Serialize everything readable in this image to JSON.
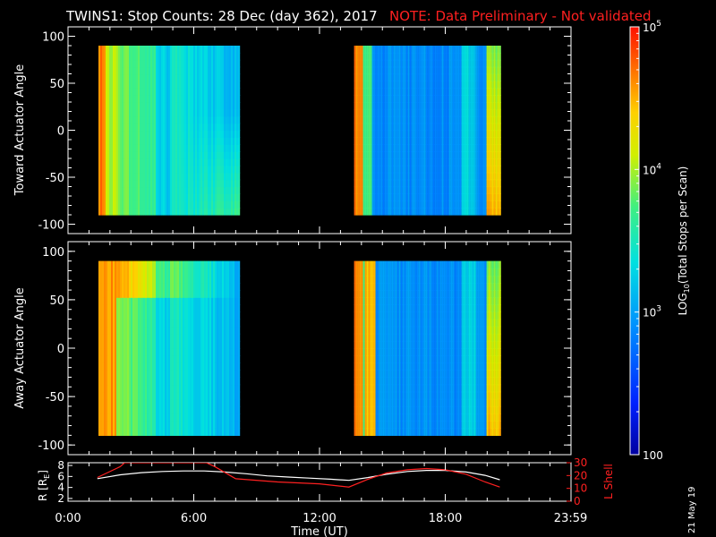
{
  "title": {
    "main": "TWINS1: Stop Counts: 28 Dec (day 362), 2017",
    "note": "NOTE: Data Preliminary - Not validated"
  },
  "stamp": "21 May 19",
  "chart_data": [
    {
      "type": "heatmap",
      "ylabel": "Toward Actuator Angle",
      "ylim": [
        -110,
        110
      ],
      "yticks": [
        "100",
        "50",
        "0",
        "-50",
        "-100"
      ],
      "ytick_values": [
        100,
        50,
        0,
        -50,
        -100
      ],
      "data_range_y": [
        -90,
        90
      ],
      "time_blocks_hours": [
        [
          1.45,
          8.15
        ],
        [
          13.65,
          20.65
        ]
      ],
      "colormap": "rainbow",
      "description_level": "log10 counts per scan, 100 to 1e5"
    },
    {
      "type": "heatmap",
      "ylabel": "Away Actuator Angle",
      "ylim": [
        -110,
        110
      ],
      "yticks": [
        "100",
        "50",
        "0",
        "-50",
        "-100"
      ],
      "ytick_values": [
        100,
        50,
        0,
        -50,
        -100
      ],
      "data_range_y": [
        -90,
        90
      ],
      "time_blocks_hours": [
        [
          1.45,
          8.15
        ],
        [
          13.65,
          20.65
        ]
      ],
      "colormap": "rainbow"
    },
    {
      "type": "line",
      "ylabel_left": "R [R",
      "ylabel_left_sub": "E",
      "ylabel_left_end": "]",
      "ylabel_right": "L Shell",
      "ylim_left": [
        1.5,
        8.5
      ],
      "yticks_left": [
        "8",
        "6",
        "4",
        "2"
      ],
      "ytick_values_left": [
        8,
        6,
        4,
        2
      ],
      "ylim_right": [
        0,
        30
      ],
      "yticks_right": [
        "30",
        "20",
        "10",
        "0"
      ],
      "ytick_values_right": [
        30,
        20,
        10,
        0
      ],
      "series": [
        {
          "name": "R",
          "color": "#ffffff",
          "x": [
            1.4,
            2.5,
            3.5,
            4.5,
            5.5,
            6.5,
            7.5,
            8.5,
            9.5,
            10.5,
            11.5,
            12.5,
            13.4,
            14.3,
            15.2,
            16.2,
            17.1,
            18.0,
            19.0,
            19.9,
            20.6
          ],
          "y": [
            5.6,
            6.3,
            6.7,
            6.9,
            7.0,
            7.0,
            6.8,
            6.5,
            6.1,
            5.9,
            5.7,
            5.5,
            5.3,
            5.8,
            6.4,
            6.9,
            7.1,
            7.1,
            6.8,
            6.2,
            5.4
          ]
        },
        {
          "name": "L Shell",
          "color": "#ff2020",
          "x": [
            1.4,
            2.5,
            2.7,
            6.6,
            7.0,
            8.0,
            10.0,
            12.0,
            13.4,
            14.3,
            15.2,
            16.2,
            17.1,
            18.0,
            19.0,
            19.9,
            20.6
          ],
          "y": [
            18.5,
            27.0,
            30.0,
            30.0,
            27.0,
            17.5,
            15.0,
            13.5,
            11.0,
            17.0,
            22.0,
            24.5,
            25.5,
            24.5,
            21.0,
            15.0,
            11.0
          ]
        }
      ]
    }
  ],
  "x_axis": {
    "label": "Time (UT)",
    "range_hours": [
      0,
      24
    ],
    "ticks": [
      "0:00",
      "6:00",
      "12:00",
      "18:00",
      "23:59"
    ],
    "tick_values": [
      0,
      6,
      12,
      18,
      23.98
    ]
  },
  "colorbar": {
    "label_main": "LOG",
    "label_sub": "10",
    "label_rest": "(Total Stops per Scan)",
    "ticks": [
      "10",
      "10",
      "10",
      "100"
    ],
    "tick_exps": [
      "5",
      "4",
      "3",
      ""
    ],
    "tick_values": [
      100000,
      10000,
      1000,
      100
    ],
    "range": [
      100,
      100000
    ],
    "scale": "log"
  },
  "colors": {
    "background": "#000000",
    "axis": "#ffffff",
    "note": "#ff2020",
    "lshell": "#ff2020"
  }
}
